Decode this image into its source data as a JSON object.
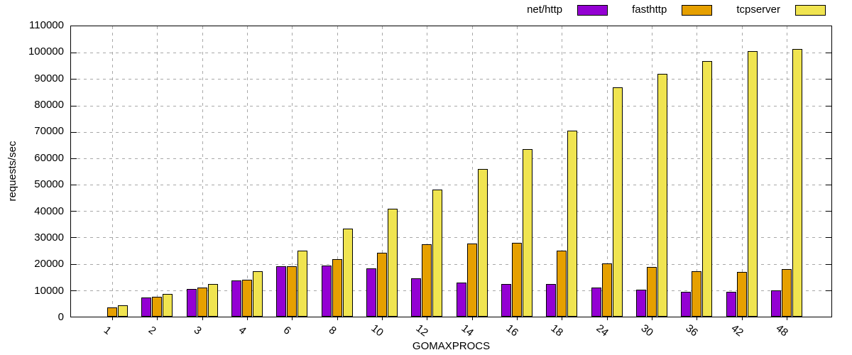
{
  "chart_data": {
    "type": "bar",
    "title": "",
    "xlabel": "GOMAXPROCS",
    "ylabel": "requests/sec",
    "categories": [
      "1",
      "2",
      "3",
      "4",
      "6",
      "8",
      "10",
      "12",
      "14",
      "16",
      "18",
      "24",
      "30",
      "36",
      "42",
      "48"
    ],
    "series": [
      {
        "name": "net/http",
        "color": "#9400d3",
        "values": [
          0,
          7200,
          10400,
          13700,
          19000,
          19300,
          18400,
          14500,
          12800,
          12400,
          12400,
          11100,
          10100,
          9400,
          9400,
          10000
        ]
      },
      {
        "name": "fasthttp",
        "color": "#e6a000",
        "values": [
          3500,
          7400,
          11000,
          14100,
          19200,
          21700,
          24300,
          27500,
          27600,
          28000,
          25100,
          20300,
          18900,
          17300,
          17000,
          17900
        ]
      },
      {
        "name": "tcpserver",
        "color": "#f0e450",
        "values": [
          4300,
          8500,
          12400,
          17200,
          25100,
          33300,
          40900,
          48100,
          55900,
          63500,
          70500,
          86900,
          92100,
          96900,
          100500,
          101300
        ]
      }
    ],
    "ylim": [
      0,
      110000
    ],
    "ytick_step": 10000,
    "ytick_labels": [
      "0",
      "10000",
      "20000",
      "30000",
      "40000",
      "50000",
      "60000",
      "70000",
      "80000",
      "90000",
      "100000",
      "110000"
    ],
    "grid": "dashed horizontal and vertical",
    "legend_position": "top-right",
    "bar_border_color": "#000000",
    "grid_color": "#a8a8a8",
    "background": "#ffffff"
  }
}
